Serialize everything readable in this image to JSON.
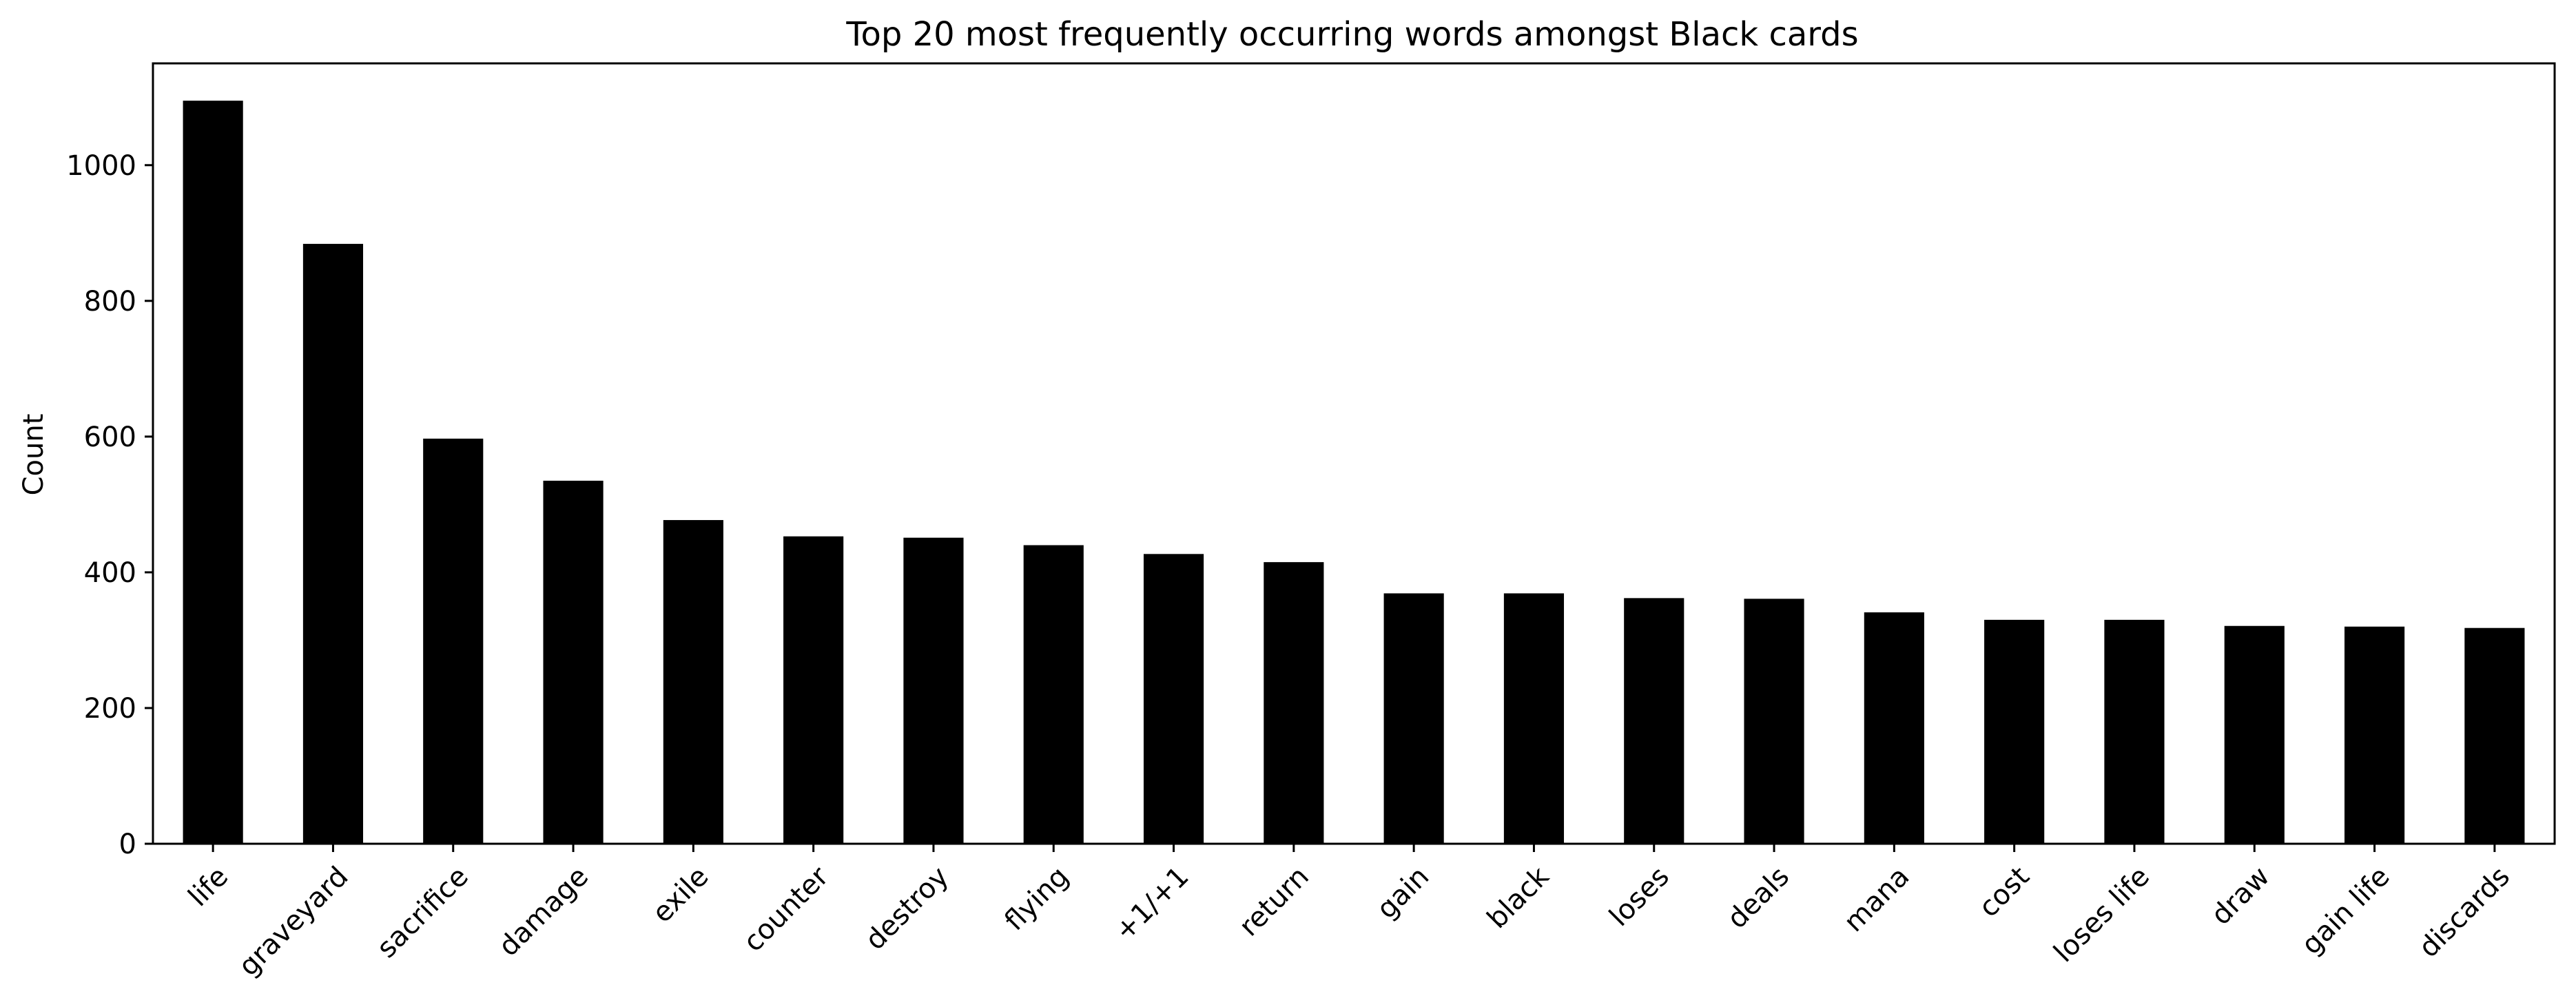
{
  "chart_data": {
    "type": "bar",
    "title": "Top 20 most frequently occurring words amongst Black cards",
    "xlabel": "",
    "ylabel": "Count",
    "categories": [
      "life",
      "graveyard",
      "sacrifice",
      "damage",
      "exile",
      "counter",
      "destroy",
      "flying",
      "+1/+1",
      "return",
      "gain",
      "black",
      "loses",
      "deals",
      "mana",
      "cost",
      "loses life",
      "draw",
      "gain life",
      "discards"
    ],
    "values": [
      1095,
      884,
      597,
      535,
      477,
      453,
      451,
      440,
      427,
      415,
      369,
      369,
      362,
      361,
      341,
      330,
      330,
      321,
      320,
      318
    ],
    "ylim": [
      0,
      1150
    ],
    "yticks": [
      0,
      200,
      400,
      600,
      800,
      1000
    ],
    "grid": false,
    "legend": "none",
    "bar_color": "#000000"
  }
}
